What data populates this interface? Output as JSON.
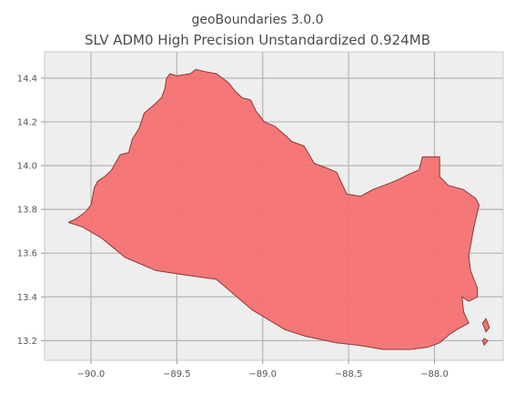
{
  "title": {
    "line1": "geoBoundaries 3.0.0",
    "line2": "SLV ADM0 High Precision Unstandardized 0.924MB"
  },
  "chart_data": {
    "type": "map",
    "x_ticks": [
      -90.0,
      -89.5,
      -89.0,
      -88.5,
      -88.0
    ],
    "x_tick_labels": [
      "−90.0",
      "−89.5",
      "−89.0",
      "−88.5",
      "−88.0"
    ],
    "y_ticks": [
      13.2,
      13.4,
      13.6,
      13.8,
      14.0,
      14.2,
      14.4
    ],
    "y_tick_labels": [
      "13.2",
      "13.4",
      "13.6",
      "13.8",
      "14.0",
      "14.2",
      "14.4"
    ],
    "xlim": [
      -90.27,
      -87.6
    ],
    "ylim": [
      13.11,
      14.52
    ],
    "grid": true,
    "fill_color": "#f47070",
    "edge_color": "#8b3a3a",
    "background_color": "#eeeeee",
    "grid_color": "#b5b5b5",
    "boundary": [
      [
        -90.13,
        13.74
      ],
      [
        -90.08,
        13.76
      ],
      [
        -90.03,
        13.79
      ],
      [
        -90.0,
        13.82
      ],
      [
        -89.98,
        13.9
      ],
      [
        -89.96,
        13.93
      ],
      [
        -89.92,
        13.95
      ],
      [
        -89.88,
        13.98
      ],
      [
        -89.83,
        14.05
      ],
      [
        -89.78,
        14.06
      ],
      [
        -89.76,
        14.12
      ],
      [
        -89.72,
        14.17
      ],
      [
        -89.69,
        14.24
      ],
      [
        -89.63,
        14.28
      ],
      [
        -89.59,
        14.31
      ],
      [
        -89.57,
        14.35
      ],
      [
        -89.56,
        14.4
      ],
      [
        -89.54,
        14.42
      ],
      [
        -89.5,
        14.41
      ],
      [
        -89.42,
        14.42
      ],
      [
        -89.39,
        14.44
      ],
      [
        -89.34,
        14.43
      ],
      [
        -89.27,
        14.42
      ],
      [
        -89.2,
        14.38
      ],
      [
        -89.16,
        14.34
      ],
      [
        -89.12,
        14.31
      ],
      [
        -89.07,
        14.3
      ],
      [
        -89.04,
        14.25
      ],
      [
        -88.99,
        14.2
      ],
      [
        -88.93,
        14.18
      ],
      [
        -88.87,
        14.14
      ],
      [
        -88.83,
        14.11
      ],
      [
        -88.76,
        14.09
      ],
      [
        -88.7,
        14.01
      ],
      [
        -88.63,
        13.99
      ],
      [
        -88.57,
        13.97
      ],
      [
        -88.51,
        13.87
      ],
      [
        -88.43,
        13.86
      ],
      [
        -88.36,
        13.89
      ],
      [
        -88.26,
        13.92
      ],
      [
        -88.2,
        13.94
      ],
      [
        -88.15,
        13.96
      ],
      [
        -88.09,
        13.98
      ],
      [
        -88.07,
        14.04
      ],
      [
        -87.97,
        14.04
      ],
      [
        -87.97,
        13.95
      ],
      [
        -87.92,
        13.91
      ],
      [
        -87.83,
        13.89
      ],
      [
        -87.76,
        13.85
      ],
      [
        -87.74,
        13.82
      ],
      [
        -87.77,
        13.72
      ],
      [
        -87.8,
        13.59
      ],
      [
        -87.79,
        13.52
      ],
      [
        -87.75,
        13.44
      ],
      [
        -87.75,
        13.4
      ],
      [
        -87.8,
        13.38
      ],
      [
        -87.84,
        13.4
      ],
      [
        -87.83,
        13.33
      ],
      [
        -87.8,
        13.28
      ],
      [
        -87.87,
        13.25
      ],
      [
        -87.91,
        13.23
      ],
      [
        -87.97,
        13.19
      ],
      [
        -88.04,
        13.17
      ],
      [
        -88.14,
        13.16
      ],
      [
        -88.3,
        13.16
      ],
      [
        -88.45,
        13.18
      ],
      [
        -88.57,
        13.19
      ],
      [
        -88.75,
        13.22
      ],
      [
        -88.87,
        13.25
      ],
      [
        -89.06,
        13.34
      ],
      [
        -89.27,
        13.48
      ],
      [
        -89.45,
        13.5
      ],
      [
        -89.62,
        13.52
      ],
      [
        -89.8,
        13.58
      ],
      [
        -89.94,
        13.67
      ],
      [
        -90.05,
        13.72
      ],
      [
        -90.13,
        13.74
      ]
    ],
    "islands": [
      [
        [
          -87.7,
          13.3
        ],
        [
          -87.68,
          13.26
        ],
        [
          -87.7,
          13.24
        ],
        [
          -87.72,
          13.28
        ],
        [
          -87.7,
          13.3
        ]
      ],
      [
        [
          -87.71,
          13.21
        ],
        [
          -87.69,
          13.2
        ],
        [
          -87.71,
          13.18
        ],
        [
          -87.72,
          13.2
        ],
        [
          -87.71,
          13.21
        ]
      ]
    ]
  }
}
